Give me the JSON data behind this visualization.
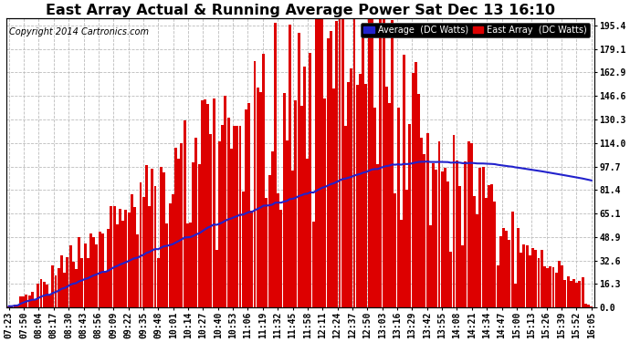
{
  "title": "East Array Actual & Running Average Power Sat Dec 13 16:10",
  "copyright": "Copyright 2014 Cartronics.com",
  "legend_avg_label": "Average  (DC Watts)",
  "legend_east_label": "East Array  (DC Watts)",
  "bar_color": "#dd0000",
  "avg_line_color": "#2222cc",
  "background_color": "#ffffff",
  "plot_bg_color": "#ffffff",
  "grid_color": "#bbbbbb",
  "title_fontsize": 11.5,
  "copyright_fontsize": 7,
  "tick_fontsize": 7,
  "yticks": [
    0.0,
    16.3,
    32.6,
    48.9,
    65.1,
    81.4,
    97.7,
    114.0,
    130.3,
    146.6,
    162.9,
    179.1,
    195.4
  ],
  "xtick_labels": [
    "07:23",
    "07:50",
    "08:04",
    "08:17",
    "08:30",
    "08:43",
    "08:56",
    "09:09",
    "09:22",
    "09:35",
    "09:48",
    "10:01",
    "10:14",
    "10:27",
    "10:40",
    "10:53",
    "11:06",
    "11:19",
    "11:32",
    "11:45",
    "11:58",
    "12:11",
    "12:24",
    "12:37",
    "12:50",
    "13:03",
    "13:16",
    "13:29",
    "13:42",
    "13:55",
    "14:08",
    "14:21",
    "14:34",
    "14:47",
    "15:00",
    "15:13",
    "15:26",
    "15:39",
    "15:52",
    "16:05"
  ]
}
